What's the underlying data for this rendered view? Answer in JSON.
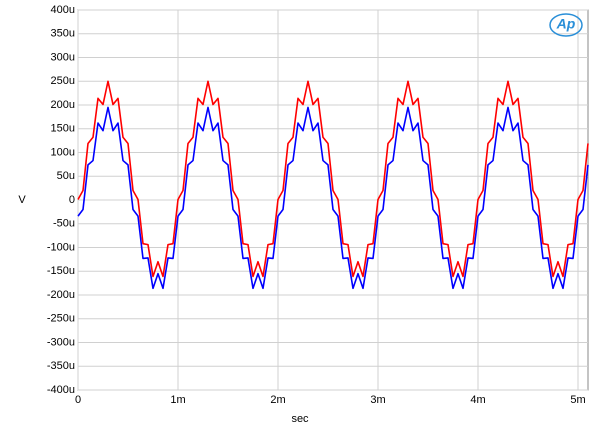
{
  "chart_data": {
    "type": "line",
    "x_label": "sec",
    "y_label": "V",
    "logo": "Ap",
    "xlim": [
      0,
      0.0051
    ],
    "xticks": [
      {
        "value": 0,
        "label": "0"
      },
      {
        "value": 0.001,
        "label": "1m"
      },
      {
        "value": 0.002,
        "label": "2m"
      },
      {
        "value": 0.003,
        "label": "3m"
      },
      {
        "value": 0.004,
        "label": "4m"
      },
      {
        "value": 0.005,
        "label": "5m"
      }
    ],
    "ylim": [
      -0.0004,
      0.0004
    ],
    "yticks": [
      {
        "value": -0.0004,
        "label": "-400u"
      },
      {
        "value": -0.00035,
        "label": "-350u"
      },
      {
        "value": -0.0003,
        "label": "-300u"
      },
      {
        "value": -0.00025,
        "label": "-250u"
      },
      {
        "value": -0.0002,
        "label": "-200u"
      },
      {
        "value": -0.00015,
        "label": "-150u"
      },
      {
        "value": -0.0001,
        "label": "-100u"
      },
      {
        "value": -5e-05,
        "label": "-50u"
      },
      {
        "value": 0,
        "label": "0"
      },
      {
        "value": 5e-05,
        "label": "50u"
      },
      {
        "value": 0.0001,
        "label": "100u"
      },
      {
        "value": 0.00015,
        "label": "150u"
      },
      {
        "value": 0.0002,
        "label": "200u"
      },
      {
        "value": 0.00025,
        "label": "250u"
      },
      {
        "value": 0.0003,
        "label": "300u"
      },
      {
        "value": 0.00035,
        "label": "350u"
      },
      {
        "value": 0.0004,
        "label": "400u"
      }
    ],
    "grid": true,
    "x": [
      0,
      5e-05,
      0.0001,
      0.00015,
      0.0002,
      0.00025,
      0.0003,
      0.00035,
      0.0004,
      0.00045,
      0.0005,
      0.00055,
      0.0006,
      0.00065,
      0.0007,
      0.00075,
      0.0008,
      0.00085,
      0.0009,
      0.00095,
      0.001,
      0.00105,
      0.0011,
      0.00115,
      0.0012,
      0.00125,
      0.0013,
      0.00135,
      0.0014,
      0.00145,
      0.0015,
      0.00155,
      0.0016,
      0.00165,
      0.0017,
      0.00175,
      0.0018,
      0.00185,
      0.0019,
      0.00195,
      0.002,
      0.00205,
      0.0021,
      0.00215,
      0.0022,
      0.00225,
      0.0023,
      0.00235,
      0.0024,
      0.00245,
      0.0025,
      0.00255,
      0.0026,
      0.00265,
      0.0027,
      0.00275,
      0.0028,
      0.00285,
      0.0029,
      0.00295,
      0.003,
      0.00305,
      0.0031,
      0.00315,
      0.0032,
      0.00325,
      0.0033,
      0.00335,
      0.0034,
      0.00345,
      0.0035,
      0.00355,
      0.0036,
      0.00365,
      0.0037,
      0.00375,
      0.0038,
      0.00385,
      0.0039,
      0.00395,
      0.004,
      0.00405,
      0.0041,
      0.00415,
      0.0042,
      0.00425,
      0.0043,
      0.00435,
      0.0044,
      0.00445,
      0.0045,
      0.00455,
      0.0046,
      0.00465,
      0.0047,
      0.00475,
      0.0048,
      0.00485,
      0.0049,
      0.00495,
      0.005,
      0.00505,
      0.0051
    ],
    "series": [
      {
        "color": "#0000ff",
        "values": [
          -3.4e-05,
          -2e-05,
          7.4e-05,
          8.3e-05,
          0.000162,
          0.000146,
          0.000195,
          0.000146,
          0.000162,
          8.3e-05,
          7.4e-05,
          -2e-05,
          -3.4e-05,
          -0.000123,
          -0.000122,
          -0.000186,
          -0.000155,
          -0.000186,
          -0.000122,
          -0.000123,
          -3.4e-05,
          -2e-05,
          7.4e-05,
          8.3e-05,
          0.000162,
          0.000146,
          0.000195,
          0.000146,
          0.000162,
          8.3e-05,
          7.4e-05,
          -2e-05,
          -3.4e-05,
          -0.000123,
          -0.000122,
          -0.000186,
          -0.000155,
          -0.000186,
          -0.000122,
          -0.000123,
          -3.4e-05,
          -2e-05,
          7.4e-05,
          8.3e-05,
          0.000162,
          0.000146,
          0.000195,
          0.000146,
          0.000162,
          8.3e-05,
          7.4e-05,
          -2e-05,
          -3.4e-05,
          -0.000123,
          -0.000122,
          -0.000186,
          -0.000155,
          -0.000186,
          -0.000122,
          -0.000123,
          -3.4e-05,
          -2e-05,
          7.4e-05,
          8.3e-05,
          0.000162,
          0.000146,
          0.000195,
          0.000146,
          0.000162,
          8.3e-05,
          7.4e-05,
          -2e-05,
          -3.4e-05,
          -0.000123,
          -0.000122,
          -0.000186,
          -0.000155,
          -0.000186,
          -0.000122,
          -0.000123,
          -3.4e-05,
          -2e-05,
          7.4e-05,
          8.3e-05,
          0.000162,
          0.000146,
          0.000195,
          0.000146,
          0.000162,
          8.3e-05,
          7.4e-05,
          -2e-05,
          -3.4e-05,
          -0.000123,
          -0.000122,
          -0.000186,
          -0.000155,
          -0.000186,
          -0.000122,
          -0.000123,
          -3.4e-05,
          -2e-05,
          7.4e-05
        ]
      },
      {
        "color": "#ff0000",
        "values": [
          1e-06,
          2e-05,
          0.000119,
          0.000132,
          0.000214,
          0.000201,
          0.00025,
          0.000201,
          0.000214,
          0.000132,
          0.000119,
          2e-05,
          1e-06,
          -9.2e-05,
          -9.4e-05,
          -0.000161,
          -0.00013,
          -0.000161,
          -9.4e-05,
          -9.2e-05,
          1e-06,
          2e-05,
          0.000119,
          0.000132,
          0.000214,
          0.000201,
          0.00025,
          0.000201,
          0.000214,
          0.000132,
          0.000119,
          2e-05,
          1e-06,
          -9.2e-05,
          -9.4e-05,
          -0.000161,
          -0.00013,
          -0.000161,
          -9.4e-05,
          -9.2e-05,
          1e-06,
          2e-05,
          0.000119,
          0.000132,
          0.000214,
          0.000201,
          0.00025,
          0.000201,
          0.000214,
          0.000132,
          0.000119,
          2e-05,
          1e-06,
          -9.2e-05,
          -9.4e-05,
          -0.000161,
          -0.00013,
          -0.000161,
          -9.4e-05,
          -9.2e-05,
          1e-06,
          2e-05,
          0.000119,
          0.000132,
          0.000214,
          0.000201,
          0.00025,
          0.000201,
          0.000214,
          0.000132,
          0.000119,
          2e-05,
          1e-06,
          -9.2e-05,
          -9.4e-05,
          -0.000161,
          -0.00013,
          -0.000161,
          -9.4e-05,
          -9.2e-05,
          1e-06,
          2e-05,
          0.000119,
          0.000132,
          0.000214,
          0.000201,
          0.00025,
          0.000201,
          0.000214,
          0.000132,
          0.000119,
          2e-05,
          1e-06,
          -9.2e-05,
          -9.4e-05,
          -0.000161,
          -0.00013,
          -0.000161,
          -9.4e-05,
          -9.2e-05,
          1e-06,
          2e-05,
          0.000119
        ]
      }
    ]
  }
}
